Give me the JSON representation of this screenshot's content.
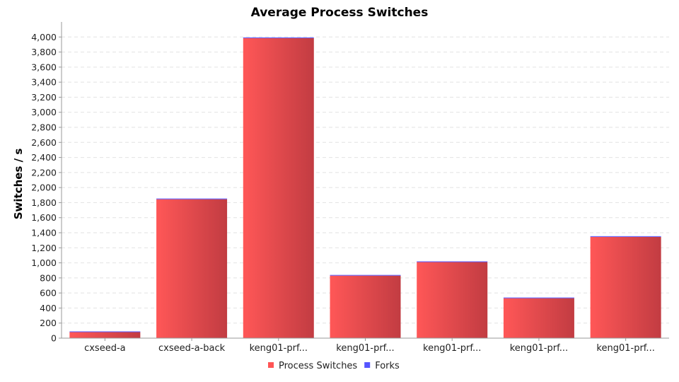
{
  "chart_data": {
    "type": "bar",
    "title": "Average Process Switches",
    "xlabel": "",
    "ylabel": "Switches / s",
    "ylim": [
      0,
      4200
    ],
    "ytick_step": 200,
    "grid": true,
    "legend_position": "bottom",
    "categories": [
      "cxseed-a",
      "cxseed-a-back",
      "keng01-prf...",
      "keng01-prf...",
      "keng01-prf...",
      "keng01-prf...",
      "keng01-prf..."
    ],
    "series": [
      {
        "name": "Process Switches",
        "color": "#ff5555",
        "values": [
          80,
          1845,
          3985,
          830,
          1010,
          530,
          1345
        ]
      },
      {
        "name": "Forks",
        "color": "#5555ff",
        "values": [
          1,
          2,
          6,
          1,
          1,
          1,
          2
        ]
      }
    ]
  }
}
